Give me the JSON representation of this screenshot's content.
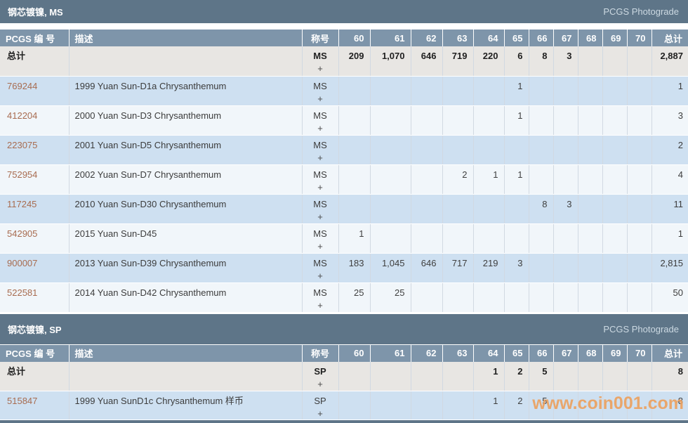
{
  "watermark": "www.coin001.com",
  "columns": {
    "pcgs": "PCGS 编 号",
    "desc": "描述",
    "designation": "称号",
    "grades": [
      "60",
      "61",
      "62",
      "63",
      "64",
      "65",
      "66",
      "67",
      "68",
      "69",
      "70"
    ],
    "total": "总计"
  },
  "tables": [
    {
      "title": "钢芯镀镍, MS",
      "photograde": "PCGS Photograde",
      "totals": {
        "label": "总计",
        "designation": "MS",
        "plus": "+",
        "grades": [
          "209",
          "1,070",
          "646",
          "719",
          "220",
          "6",
          "8",
          "3",
          "",
          "",
          ""
        ],
        "total": "2,887"
      },
      "rows": [
        {
          "pcgs": "769244",
          "desc": "1999 Yuan Sun-D1a Chrysanthemum",
          "designation": "MS",
          "plus": "+",
          "grades": [
            "",
            "",
            "",
            "",
            "",
            "1",
            "",
            "",
            "",
            "",
            ""
          ],
          "total": "1"
        },
        {
          "pcgs": "412204",
          "desc": "2000 Yuan Sun-D3 Chrysanthemum",
          "designation": "MS",
          "plus": "+",
          "grades": [
            "",
            "",
            "",
            "",
            "",
            "1",
            "",
            "",
            "",
            "",
            ""
          ],
          "total": "3"
        },
        {
          "pcgs": "223075",
          "desc": "2001 Yuan Sun-D5 Chrysanthemum",
          "designation": "MS",
          "plus": "+",
          "grades": [
            "",
            "",
            "",
            "",
            "",
            "",
            "",
            "",
            "",
            "",
            ""
          ],
          "total": "2"
        },
        {
          "pcgs": "752954",
          "desc": "2002 Yuan Sun-D7 Chrysanthemum",
          "designation": "MS",
          "plus": "+",
          "grades": [
            "",
            "",
            "",
            "2",
            "1",
            "1",
            "",
            "",
            "",
            "",
            ""
          ],
          "total": "4"
        },
        {
          "pcgs": "117245",
          "desc": "2010 Yuan Sun-D30 Chrysanthemum",
          "designation": "MS",
          "plus": "+",
          "grades": [
            "",
            "",
            "",
            "",
            "",
            "",
            "8",
            "3",
            "",
            "",
            ""
          ],
          "total": "11"
        },
        {
          "pcgs": "542905",
          "desc": "2015 Yuan Sun-D45",
          "designation": "MS",
          "plus": "+",
          "grades": [
            "1",
            "",
            "",
            "",
            "",
            "",
            "",
            "",
            "",
            "",
            ""
          ],
          "total": "1"
        },
        {
          "pcgs": "900007",
          "desc": "2013 Yuan Sun-D39 Chrysanthemum",
          "designation": "MS",
          "plus": "+",
          "grades": [
            "183",
            "1,045",
            "646",
            "717",
            "219",
            "3",
            "",
            "",
            "",
            "",
            ""
          ],
          "total": "2,815"
        },
        {
          "pcgs": "522581",
          "desc": "2014 Yuan Sun-D42 Chrysanthemum",
          "designation": "MS",
          "plus": "+",
          "grades": [
            "25",
            "25",
            "",
            "",
            "",
            "",
            "",
            "",
            "",
            "",
            ""
          ],
          "total": "50"
        }
      ]
    },
    {
      "title": "钢芯镀镍, SP",
      "photograde": "PCGS Photograde",
      "totals": {
        "label": "总计",
        "designation": "SP",
        "plus": "+",
        "grades": [
          "",
          "",
          "",
          "",
          "1",
          "2",
          "5",
          "",
          "",
          "",
          ""
        ],
        "total": "8"
      },
      "rows": [
        {
          "pcgs": "515847",
          "desc": "1999 Yuan SunD1c Chrysanthemum 样币",
          "designation": "SP",
          "plus": "+",
          "grades": [
            "",
            "",
            "",
            "",
            "1",
            "2",
            "5",
            "",
            "",
            "",
            ""
          ],
          "total": "8"
        }
      ]
    }
  ]
}
